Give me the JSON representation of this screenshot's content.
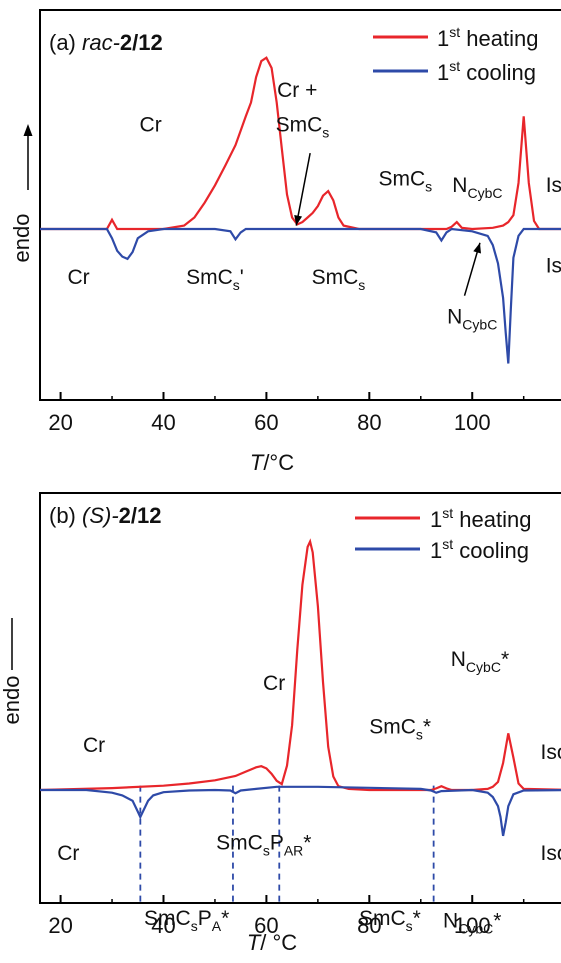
{
  "chart_data": [
    {
      "type": "line",
      "panel_label": "(a)",
      "sample": {
        "prefix": "rac-",
        "bold": "2/12"
      },
      "xlabel": {
        "symbol": "T",
        "unit": "/°C"
      },
      "ylabel": "endo",
      "xlim": [
        16,
        119
      ],
      "x_ticks": [
        20,
        40,
        60,
        80,
        100
      ],
      "grid": false,
      "legend_position": "top-right",
      "series": [
        {
          "name": "1st heating",
          "legend": {
            "base": "1",
            "sup": "st",
            "rest": " heating"
          },
          "color": "#e8262b",
          "x": [
            16,
            29,
            30,
            31,
            33,
            40,
            44,
            46,
            48,
            50,
            52,
            54,
            56,
            57,
            58,
            59,
            60,
            61,
            62,
            63,
            64,
            65,
            66,
            67,
            68,
            69,
            70,
            71,
            72,
            73,
            74,
            75,
            78,
            85,
            90,
            95,
            96,
            97,
            98,
            100,
            104,
            106,
            107,
            108,
            109,
            110,
            111,
            112,
            113,
            119
          ],
          "y": [
            0,
            0,
            0.8,
            0,
            0,
            0,
            0.3,
            1,
            2.3,
            3.8,
            5.5,
            7.3,
            9.8,
            11,
            13.2,
            14.6,
            14.9,
            14,
            11,
            7,
            3,
            1,
            0.4,
            0.6,
            1,
            1.4,
            2,
            2.9,
            3.3,
            2.5,
            1,
            0.3,
            0,
            0,
            0,
            0,
            0.2,
            0.6,
            0.1,
            0,
            0.1,
            0.3,
            0.6,
            1.2,
            4,
            9.8,
            4,
            0.7,
            0,
            0
          ]
        },
        {
          "name": "1st cooling",
          "legend": {
            "base": "1",
            "sup": "st",
            "rest": " cooling"
          },
          "color": "#2e4aa8",
          "x": [
            16,
            29,
            30,
            31,
            32,
            33,
            34,
            35,
            37,
            40,
            50,
            53,
            54,
            55,
            56,
            60,
            80,
            90,
            93,
            94,
            95,
            96,
            100,
            103,
            104,
            105,
            106,
            106.5,
            107,
            107.5,
            108,
            109,
            110,
            119
          ],
          "y": [
            0,
            0,
            -0.8,
            -1.9,
            -2.4,
            -2.6,
            -2,
            -0.8,
            -0.2,
            0,
            0,
            -0.2,
            -0.9,
            -0.3,
            0,
            0,
            0,
            0,
            -0.3,
            -1,
            -0.3,
            0,
            -0.2,
            -0.6,
            -1.4,
            -3,
            -6,
            -9,
            -11.7,
            -7,
            -2.5,
            -0.6,
            0,
            0
          ]
        }
      ],
      "annotations": [
        {
          "text": "Cr",
          "x": 37.5,
          "y": 8.5
        },
        {
          "text": "Cr +",
          "x": 66,
          "y": 11.5
        },
        {
          "text": "SmC",
          "sub": "s",
          "x": 67,
          "y": 8.5
        },
        {
          "text": "SmC",
          "sub": "s",
          "x": 87,
          "y": 3.8
        },
        {
          "text": "N",
          "sub": "CybC",
          "x": 101,
          "y": 3.2
        },
        {
          "text": "Iso",
          "x": 117,
          "y": 3.2
        },
        {
          "text": "Cr",
          "x": 23.5,
          "y": -4.8
        },
        {
          "text": "SmC",
          "sub": "s",
          "tail": "'",
          "x": 50,
          "y": -4.8
        },
        {
          "text": "SmC",
          "sub": "s",
          "x": 74,
          "y": -4.8
        },
        {
          "text": "N",
          "sub": "CybC",
          "x": 100,
          "y": -8.2
        },
        {
          "text": "Iso",
          "x": 117,
          "y": -3.8
        }
      ],
      "arrows": [
        {
          "from": [
            68.5,
            6.6
          ],
          "to": [
            65.8,
            0.3
          ]
        },
        {
          "from": [
            98.5,
            -5.8
          ],
          "to": [
            101.5,
            -1.2
          ]
        }
      ],
      "ylim": [
        -17,
        18
      ]
    },
    {
      "type": "line",
      "panel_label": "(b)",
      "sample": {
        "prefix": "(S)-",
        "bold": "2/12"
      },
      "xlabel": {
        "symbol": "T",
        "unit": "/ °C"
      },
      "ylabel": "endo",
      "xlim": [
        16,
        119
      ],
      "x_ticks": [
        20,
        40,
        60,
        80,
        100
      ],
      "grid": false,
      "legend_position": "top-right",
      "series": [
        {
          "name": "1st heating",
          "legend": {
            "base": "1",
            "sup": "st",
            "rest": " heating"
          },
          "color": "#e8262b",
          "x": [
            16,
            30,
            40,
            45,
            50,
            54,
            56,
            58,
            59,
            60,
            61,
            62,
            63,
            64,
            65,
            66,
            67,
            68,
            68.5,
            69,
            70,
            71,
            72,
            73,
            74,
            76,
            80,
            85,
            90,
            92,
            93,
            94,
            95,
            96,
            100,
            103,
            104,
            105,
            106,
            107,
            108,
            109,
            110,
            119
          ],
          "y": [
            0,
            0.35,
            0.8,
            1.2,
            1.8,
            2.6,
            3.4,
            4.2,
            4.4,
            4,
            3,
            1.7,
            1.1,
            4.5,
            12,
            26,
            38,
            45,
            46,
            44,
            34,
            20,
            8,
            2.5,
            0.7,
            0.2,
            0,
            0,
            0,
            0,
            0.3,
            0.7,
            0.3,
            0,
            0,
            0.2,
            0.6,
            1.5,
            5,
            10.5,
            6,
            1.2,
            0.2,
            0
          ]
        },
        {
          "name": "1st cooling",
          "legend": {
            "base": "1",
            "sup": "st",
            "rest": " cooling"
          },
          "color": "#2e4aa8",
          "x": [
            16,
            25,
            30,
            32,
            34,
            35,
            35.5,
            36,
            37,
            38,
            40,
            45,
            50,
            53,
            54,
            55,
            58,
            62,
            70,
            80,
            90,
            92,
            93,
            94,
            100,
            103,
            104,
            105,
            105.5,
            106,
            106.5,
            107,
            108,
            110,
            119
          ],
          "y": [
            0,
            0,
            -0.5,
            -1,
            -2,
            -4,
            -5,
            -4,
            -2,
            -1,
            -0.4,
            -0.1,
            0,
            -0.1,
            -0.6,
            -0.1,
            0.2,
            0.6,
            0.6,
            0.4,
            0.2,
            -0.1,
            -0.5,
            -0.2,
            0,
            -0.5,
            -1.3,
            -3,
            -5,
            -8.5,
            -6,
            -3,
            -0.8,
            -0.1,
            0
          ]
        }
      ],
      "annotations": [
        {
          "text": "Cr",
          "x": 26.5,
          "y": 7
        },
        {
          "text": "Cr",
          "x": 61.5,
          "y": 18.5
        },
        {
          "text": "SmC",
          "sub": "s",
          "tail": "*",
          "x": 86,
          "y": 10.5
        },
        {
          "text": "N",
          "sub": "CybC",
          "tail": "*",
          "x": 101.5,
          "y": 23
        },
        {
          "text": "Iso",
          "x": 116,
          "y": 5.7
        },
        {
          "text": "Cr",
          "x": 21.5,
          "y": -13
        },
        {
          "text": "SmC",
          "sub": "s",
          "text2": "P",
          "sub2": "A",
          "tail": "*",
          "x": 44.5,
          "y": -25
        },
        {
          "text": "SmC",
          "sub": "s",
          "text2": "P",
          "sub2": "AR",
          "tail": "*",
          "x": 59.5,
          "y": -11
        },
        {
          "text": "SmC",
          "sub": "s",
          "tail": "*",
          "x": 84,
          "y": -25
        },
        {
          "text": "N",
          "sub": "CybC",
          "tail": "*",
          "x": 100,
          "y": -25.5
        },
        {
          "text": "Iso",
          "x": 116,
          "y": -13
        }
      ],
      "dashed_lines": [
        35.5,
        53.5,
        62.5,
        92.5
      ],
      "ylim": [
        -32,
        55
      ]
    }
  ]
}
